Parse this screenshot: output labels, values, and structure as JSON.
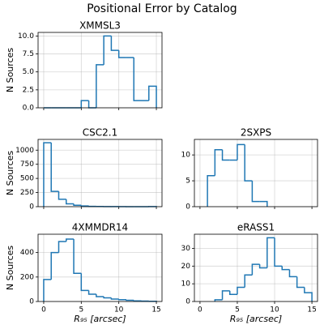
{
  "title": "Positional Error by Catalog",
  "chart_data": [
    {
      "type": "histogram",
      "title": "XMMSL3",
      "ylabel": "N Sources",
      "color": "#1f77b4",
      "grid": true,
      "xtick_labels": false,
      "bins": [
        0,
        1,
        2,
        3,
        4,
        5,
        6,
        7,
        8,
        9,
        10,
        11,
        12,
        13,
        14,
        15
      ],
      "values": [
        0,
        0,
        0,
        0,
        0,
        1,
        0,
        6,
        10,
        8,
        7,
        7,
        1,
        1,
        3
      ],
      "xlim": [
        -0.75,
        15.75
      ],
      "xticks": [
        0,
        5,
        10,
        15
      ],
      "ylim": [
        0,
        10.5
      ],
      "yticks": [
        {
          "value": 0,
          "label": "0.0"
        },
        {
          "value": 2.5,
          "label": "2.5"
        },
        {
          "value": 5,
          "label": "5.0"
        },
        {
          "value": 7.5,
          "label": "7.5"
        },
        {
          "value": 10,
          "label": "10.0"
        }
      ]
    },
    {
      "type": "histogram",
      "title": "CSC2.1",
      "ylabel": "N Sources",
      "color": "#1f77b4",
      "grid": true,
      "xtick_labels": false,
      "bins": [
        0,
        1,
        2,
        3,
        4,
        5,
        6,
        7,
        8,
        9,
        10,
        11,
        12,
        13,
        14,
        15
      ],
      "values": [
        1130,
        270,
        130,
        50,
        25,
        12,
        6,
        4,
        2,
        1,
        1,
        0,
        0,
        0,
        1
      ],
      "xlim": [
        -0.75,
        15.75
      ],
      "xticks": [
        0,
        5,
        10,
        15
      ],
      "ylim": [
        0,
        1190
      ],
      "yticks": [
        0,
        250,
        500,
        750,
        1000
      ]
    },
    {
      "type": "histogram",
      "title": "2SXPS",
      "color": "#1f77b4",
      "grid": true,
      "xtick_labels": false,
      "bins": [
        1,
        2,
        3,
        4,
        5,
        6,
        7,
        8,
        9
      ],
      "values": [
        6,
        11,
        9,
        9,
        12,
        5,
        1,
        1
      ],
      "xlim": [
        -0.75,
        15.75
      ],
      "xticks": [
        0,
        5,
        10,
        15
      ],
      "ylim": [
        0,
        13
      ],
      "yticks": [
        0,
        5,
        10
      ]
    },
    {
      "type": "histogram",
      "title": "4XMMDR14",
      "ylabel": "N Sources",
      "xlabel": "R₉₅ [arcsec]",
      "color": "#1f77b4",
      "grid": true,
      "bins": [
        0,
        1,
        2,
        3,
        4,
        5,
        6,
        7,
        8,
        9,
        10,
        11,
        12,
        13,
        14,
        15
      ],
      "values": [
        180,
        400,
        490,
        510,
        230,
        90,
        60,
        40,
        30,
        20,
        15,
        10,
        5,
        3,
        2
      ],
      "xlim": [
        -0.75,
        15.75
      ],
      "xticks": [
        0,
        5,
        10,
        15
      ],
      "ylim": [
        0,
        550
      ],
      "yticks": [
        0,
        200,
        400
      ]
    },
    {
      "type": "histogram",
      "title": "eRASS1",
      "xlabel": "R₉₅ [arcsec]",
      "color": "#1f77b4",
      "grid": true,
      "bins": [
        2,
        3,
        4,
        5,
        6,
        7,
        8,
        9,
        10,
        11,
        12,
        13,
        14,
        15
      ],
      "values": [
        1,
        6,
        4,
        8,
        15,
        21,
        19,
        36,
        20,
        18,
        14,
        8,
        5
      ],
      "xlim": [
        -0.75,
        15.75
      ],
      "xticks": [
        0,
        5,
        10,
        15
      ],
      "ylim": [
        0,
        38
      ],
      "yticks": [
        0,
        10,
        20,
        30
      ]
    }
  ]
}
